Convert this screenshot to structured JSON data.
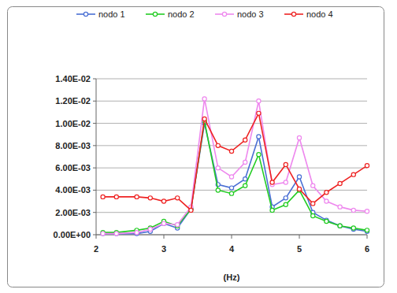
{
  "chart_data": {
    "type": "line",
    "x_label": "(Hz)",
    "x": [
      2.1,
      2.3,
      2.6,
      2.8,
      3.0,
      3.2,
      3.4,
      3.6,
      3.8,
      4.0,
      4.2,
      4.4,
      4.6,
      4.8,
      5.0,
      5.2,
      5.4,
      5.6,
      5.8,
      6.0
    ],
    "series": [
      {
        "name": "nodo 1",
        "color": "#4a6fd4",
        "marker": "circle",
        "values": [
          0.0001,
          0.0001,
          0.0001,
          0.0003,
          0.001,
          0.0006,
          0.0023,
          0.01,
          0.0045,
          0.0042,
          0.005,
          0.0088,
          0.0025,
          0.0033,
          0.0052,
          0.002,
          0.0013,
          0.0008,
          0.0005,
          0.0003
        ]
      },
      {
        "name": "nodo 2",
        "color": "#22cc22",
        "marker": "circle",
        "values": [
          0.0002,
          0.0002,
          0.0004,
          0.0006,
          0.0012,
          0.0008,
          0.0023,
          0.0102,
          0.004,
          0.0037,
          0.0044,
          0.0072,
          0.0022,
          0.0027,
          0.004,
          0.0017,
          0.0012,
          0.0008,
          0.0006,
          0.0004
        ]
      },
      {
        "name": "nodo 3",
        "color": "#ee88ee",
        "marker": "circle",
        "values": [
          0.0001,
          0.0001,
          0.0002,
          0.0005,
          0.001,
          0.0009,
          0.0025,
          0.0122,
          0.006,
          0.0052,
          0.0065,
          0.012,
          0.0045,
          0.0047,
          0.0087,
          0.0044,
          0.003,
          0.0025,
          0.0022,
          0.0021
        ]
      },
      {
        "name": "nodo 4",
        "color": "#ee2222",
        "marker": "circle",
        "values": [
          0.0034,
          0.0034,
          0.0034,
          0.0033,
          0.003,
          0.0033,
          0.0022,
          0.0104,
          0.008,
          0.0075,
          0.0085,
          0.0109,
          0.0047,
          0.0063,
          0.0041,
          0.0028,
          0.0038,
          0.0046,
          0.0054,
          0.0062
        ]
      }
    ],
    "xlim": [
      2,
      6
    ],
    "xticks": [
      2,
      3,
      4,
      5,
      6
    ],
    "ylim": [
      0,
      0.014
    ],
    "yticks": [
      {
        "value": 0,
        "label": "0.00E+00"
      },
      {
        "value": 0.002,
        "label": "2.00E-03"
      },
      {
        "value": 0.004,
        "label": "4.00E-03"
      },
      {
        "value": 0.006,
        "label": "6.00E-03"
      },
      {
        "value": 0.008,
        "label": "8.00E-03"
      },
      {
        "value": 0.01,
        "label": "1.00E-02"
      },
      {
        "value": 0.012,
        "label": "1.20E-02"
      },
      {
        "value": 0.014,
        "label": "1.40E-02"
      }
    ],
    "grid": true,
    "legend": "top"
  }
}
